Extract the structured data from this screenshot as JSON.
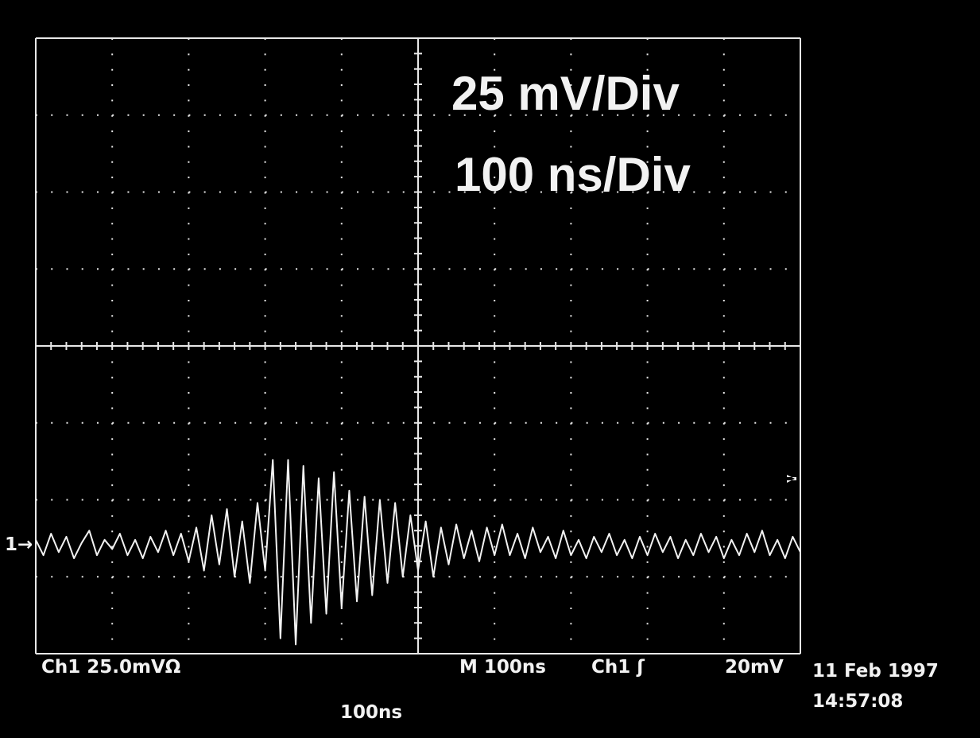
{
  "chart_data": {
    "type": "line",
    "annotations": [
      "25 mV/Div",
      "100 ns/Div"
    ],
    "annotation_color": "#ee1c2e",
    "readout": {
      "channel": "Ch1  25.0mVΩ",
      "timebase": "M  100ns",
      "trigger": "Ch1 ʃ",
      "trigger_level": "20mV",
      "date": "11 Feb 1997",
      "time": "14:57:08",
      "delay": "100ns",
      "marker": "1→"
    },
    "x": [
      0,
      10,
      20,
      30,
      40,
      50,
      60,
      70,
      80,
      90,
      100,
      110,
      120,
      130,
      140,
      150,
      160,
      170,
      180,
      190,
      200,
      210,
      220,
      230,
      240,
      250,
      260,
      270,
      280,
      290,
      300,
      310,
      320,
      330,
      340,
      350,
      360,
      370,
      380,
      390,
      400,
      410,
      420,
      430,
      440,
      450,
      460,
      470,
      480,
      490,
      500,
      510,
      520,
      530,
      540,
      550,
      560,
      570,
      580,
      590,
      600,
      610,
      620,
      630,
      640,
      650,
      660,
      670,
      680,
      690,
      700,
      710,
      720,
      730,
      740,
      750,
      760,
      770,
      780,
      790,
      800,
      810,
      820,
      830,
      840,
      850,
      860,
      870,
      880,
      890,
      900,
      910,
      920,
      930,
      940,
      950,
      960,
      970,
      980,
      990,
      1000
    ],
    "series": [
      {
        "color": "#f2f2f2",
        "values": [
          2,
          -3,
          4,
          -2,
          3,
          -4,
          1,
          5,
          -3,
          2,
          -1,
          4,
          -3,
          2,
          -4,
          3,
          -2,
          5,
          -3,
          4,
          -5,
          6,
          -8,
          10,
          -6,
          12,
          -10,
          8,
          -12,
          14,
          -8,
          28,
          -30,
          28,
          -32,
          26,
          -25,
          22,
          -22,
          24,
          -20,
          18,
          -18,
          16,
          -16,
          15,
          -12,
          14,
          -10,
          10,
          -8,
          8,
          -10,
          6,
          -6,
          7,
          -4,
          5,
          -5,
          6,
          -3,
          7,
          -3,
          4,
          -4,
          6,
          -2,
          3,
          -4,
          5,
          -3,
          2,
          -4,
          3,
          -2,
          4,
          -3,
          2,
          -4,
          3,
          -3,
          4,
          -2,
          3,
          -4,
          2,
          -3,
          4,
          -2,
          3,
          -4,
          2,
          -3,
          4,
          -2,
          5,
          -3,
          2,
          -4,
          3,
          -2
        ]
      }
    ],
    "xlim": [
      0,
      1000
    ],
    "ylim": [
      -35,
      165
    ],
    "xticks": [
      0,
      100,
      200,
      300,
      400,
      500,
      600,
      700,
      800,
      900,
      1000
    ],
    "yticks": [
      -35,
      -10,
      15,
      40,
      65,
      90,
      115,
      140,
      165
    ],
    "grid": true
  }
}
